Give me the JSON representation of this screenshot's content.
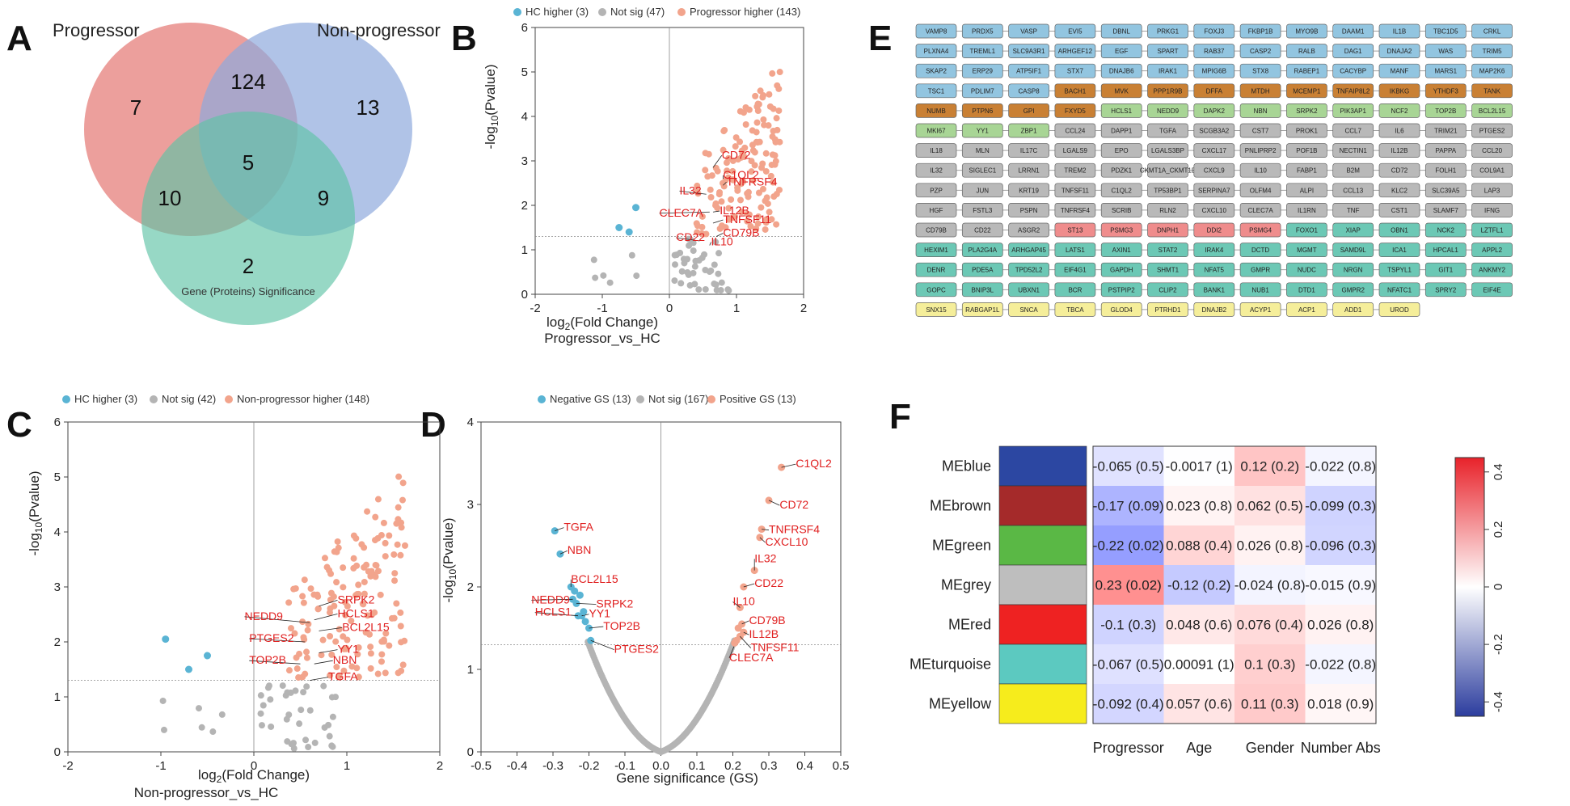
{
  "panel_labels": [
    "A",
    "B",
    "C",
    "D",
    "E",
    "F"
  ],
  "colors": {
    "hc": "#5ab4d4",
    "notsig": "#b4b4b4",
    "up": "#f2a48c",
    "gene_label": "#e02020",
    "venn_progressor": "#e57f7b",
    "venn_nonprogressor": "#8fa9dd",
    "venn_gs": "#5fc3a6"
  },
  "chart_data": [
    {
      "id": "A",
      "type": "venn",
      "sets": [
        "Progressor",
        "Non-progressor",
        "Gene (Proteins) Significance"
      ],
      "regions": {
        "progressor_only": "7",
        "nonprogressor_only": "13",
        "gs_only": "2",
        "progressor_nonprogressor": "124",
        "progressor_gs": "10",
        "nonprogressor_gs": "9",
        "all_three": "5"
      }
    },
    {
      "id": "B",
      "type": "scatter",
      "legend": [
        "HC higher (3)",
        "Not sig (47)",
        "Progressor higher (143)"
      ],
      "xlabel_base": "log",
      "xlabel_sub": "2",
      "xlabel_rest": "(Fold Change)",
      "xlabel2": "Progressor_vs_HC",
      "ylabel_pre": "-log",
      "ylabel_sub": "10",
      "ylabel_post": "(Pvalue)",
      "xlim": [
        -2,
        2
      ],
      "ylim": [
        0,
        6
      ],
      "xticks": [
        "-2",
        "-1",
        "0",
        "1",
        "2"
      ],
      "yticks": [
        "0",
        "1",
        "2",
        "3",
        "4",
        "5",
        "6"
      ],
      "threshold_y": 1.3,
      "seed": 11,
      "series_hc": [
        [
          -0.75,
          1.5
        ],
        [
          -0.6,
          1.4
        ],
        [
          -0.5,
          1.95
        ]
      ],
      "labels": [
        {
          "text": "CD72",
          "x": 0.65,
          "y": 2.85,
          "tx": 0.78,
          "ty": 3.05
        },
        {
          "text": "C1QL2",
          "x": 0.8,
          "y": 2.6,
          "tx": 0.8,
          "ty": 2.6
        },
        {
          "text": "TNFRSF4",
          "x": 0.8,
          "y": 2.45,
          "tx": 0.85,
          "ty": 2.45
        },
        {
          "text": "IL32",
          "x": 0.55,
          "y": 2.25,
          "tx": 0.15,
          "ty": 2.25
        },
        {
          "text": "IL12B",
          "x": 0.65,
          "y": 1.85,
          "tx": 0.75,
          "ty": 1.8
        },
        {
          "text": "CLEC7A",
          "x": 0.6,
          "y": 1.85,
          "tx": -0.15,
          "ty": 1.75
        },
        {
          "text": "TNFSF11",
          "x": 0.65,
          "y": 1.6,
          "tx": 0.8,
          "ty": 1.6
        },
        {
          "text": "CD79B",
          "x": 0.7,
          "y": 1.3,
          "tx": 0.8,
          "ty": 1.3
        },
        {
          "text": "CD22",
          "x": 0.45,
          "y": 1.2,
          "tx": 0.1,
          "ty": 1.2
        },
        {
          "text": "IL10",
          "x": 0.6,
          "y": 1.1,
          "tx": 0.62,
          "ty": 1.1
        }
      ]
    },
    {
      "id": "C",
      "type": "scatter",
      "legend": [
        "HC higher (3)",
        "Not sig (42)",
        "Non-progressor higher (148)"
      ],
      "xlabel_base": "log",
      "xlabel_sub": "2",
      "xlabel_rest": "(Fold Change)",
      "xlabel2": "Non-progressor_vs_HC",
      "ylabel_pre": "-log",
      "ylabel_sub": "10",
      "ylabel_post": "(Pvalue)",
      "xlim": [
        -2,
        2
      ],
      "ylim": [
        0,
        6
      ],
      "xticks": [
        "-2",
        "-1",
        "0",
        "1",
        "2"
      ],
      "yticks": [
        "0",
        "1",
        "2",
        "3",
        "4",
        "5",
        "6"
      ],
      "threshold_y": 1.3,
      "seed": 29,
      "series_hc": [
        [
          -0.95,
          2.05
        ],
        [
          -0.7,
          1.5
        ],
        [
          -0.5,
          1.75
        ]
      ],
      "labels": [
        {
          "text": "NEDD9",
          "x": 0.6,
          "y": 2.35,
          "tx": -0.1,
          "ty": 2.4
        },
        {
          "text": "SRPK2",
          "x": 0.7,
          "y": 2.65,
          "tx": 0.9,
          "ty": 2.7
        },
        {
          "text": "HCLS1",
          "x": 0.65,
          "y": 2.4,
          "tx": 0.9,
          "ty": 2.45
        },
        {
          "text": "BCL2L15",
          "x": 0.7,
          "y": 2.2,
          "tx": 0.95,
          "ty": 2.2
        },
        {
          "text": "PTGES2",
          "x": 0.55,
          "y": 2.0,
          "tx": -0.05,
          "ty": 2.0
        },
        {
          "text": "YY1",
          "x": 0.7,
          "y": 1.8,
          "tx": 0.9,
          "ty": 1.8
        },
        {
          "text": "TOP2B",
          "x": 0.5,
          "y": 1.6,
          "tx": -0.05,
          "ty": 1.6
        },
        {
          "text": "NBN",
          "x": 0.65,
          "y": 1.6,
          "tx": 0.85,
          "ty": 1.6
        },
        {
          "text": "TGFA",
          "x": 0.6,
          "y": 1.3,
          "tx": 0.8,
          "ty": 1.3
        }
      ]
    },
    {
      "id": "D",
      "type": "scatter",
      "legend": [
        "Negative GS (13)",
        "Not sig (167)",
        "Positive GS (13)"
      ],
      "xlabel": "Gene significance (GS)",
      "ylabel_pre": "-log",
      "ylabel_sub": "10",
      "ylabel_post": "(Pvalue)",
      "xlim": [
        -0.5,
        0.5
      ],
      "ylim": [
        0,
        4
      ],
      "xticks": [
        "-0.5",
        "-0.4",
        "-0.3",
        "-0.2",
        "-0.1",
        "0.0",
        "0.1",
        "0.2",
        "0.3",
        "0.4",
        "0.5"
      ],
      "yticks": [
        "0",
        "1",
        "2",
        "3",
        "4"
      ],
      "threshold_y": 1.3,
      "negative": [
        {
          "text": "TGFA",
          "x": -0.295,
          "y": 2.68,
          "tx": -0.27,
          "ty": 2.68
        },
        {
          "text": "NBN",
          "x": -0.28,
          "y": 2.4,
          "tx": -0.26,
          "ty": 2.4
        },
        {
          "text": "BCL2L15",
          "x": -0.25,
          "y": 2.0,
          "tx": -0.25,
          "ty": 2.05
        },
        {
          "text": "NEDD9",
          "x": -0.245,
          "y": 1.85,
          "tx": -0.36,
          "ty": 1.8
        },
        {
          "text": "SRPK2",
          "x": -0.235,
          "y": 1.8,
          "tx": -0.18,
          "ty": 1.75
        },
        {
          "text": "HCLS1",
          "x": -0.23,
          "y": 1.65,
          "tx": -0.35,
          "ty": 1.65
        },
        {
          "text": "YY1",
          "x": -0.22,
          "y": 1.65,
          "tx": -0.2,
          "ty": 1.63
        },
        {
          "text": "TOP2B",
          "x": -0.2,
          "y": 1.5,
          "tx": -0.16,
          "ty": 1.48
        },
        {
          "text": "PTGES2",
          "x": -0.195,
          "y": 1.35,
          "tx": -0.13,
          "ty": 1.2
        },
        {
          "text": "",
          "x": -0.21,
          "y": 1.58
        },
        {
          "text": "",
          "x": -0.215,
          "y": 1.7
        },
        {
          "text": "",
          "x": -0.225,
          "y": 1.9
        },
        {
          "text": "",
          "x": -0.24,
          "y": 1.95
        }
      ],
      "positive": [
        {
          "text": "C1QL2",
          "x": 0.335,
          "y": 3.45,
          "tx": 0.375,
          "ty": 3.45
        },
        {
          "text": "CD72",
          "x": 0.3,
          "y": 3.05,
          "tx": 0.33,
          "ty": 2.95
        },
        {
          "text": "TNFRSF4",
          "x": 0.28,
          "y": 2.7,
          "tx": 0.3,
          "ty": 2.65
        },
        {
          "text": "CXCL10",
          "x": 0.275,
          "y": 2.6,
          "tx": 0.29,
          "ty": 2.5
        },
        {
          "text": "IL32",
          "x": 0.26,
          "y": 2.2,
          "tx": 0.26,
          "ty": 2.3
        },
        {
          "text": "CD22",
          "x": 0.23,
          "y": 2.0,
          "tx": 0.26,
          "ty": 2.0
        },
        {
          "text": "IL10",
          "x": 0.22,
          "y": 1.75,
          "tx": 0.2,
          "ty": 1.78
        },
        {
          "text": "CD79B",
          "x": 0.225,
          "y": 1.55,
          "tx": 0.245,
          "ty": 1.55
        },
        {
          "text": "IL12B",
          "x": 0.23,
          "y": 1.45,
          "tx": 0.245,
          "ty": 1.38
        },
        {
          "text": "TNFSF11",
          "x": 0.22,
          "y": 1.4,
          "tx": 0.25,
          "ty": 1.22
        },
        {
          "text": "CLEC7A",
          "x": 0.21,
          "y": 1.35,
          "tx": 0.19,
          "ty": 1.1
        },
        {
          "text": "",
          "x": 0.205,
          "y": 1.32
        },
        {
          "text": "",
          "x": 0.215,
          "y": 1.5
        }
      ]
    },
    {
      "id": "E",
      "type": "table",
      "module_colors": {
        "B": "#92c5e0",
        "O": "#c98034",
        "G": "#a8d595",
        "R": "#ef8c8c",
        "T": "#6cc8b5",
        "Y": "#f5ee9a",
        "X": "#b9b9b9"
      },
      "rows": [
        {
          "c": "BBBBBBBBBBBBBB",
          "g": [
            "VAMP8",
            "PRDX5",
            "VASP",
            "EVI5",
            "DBNL",
            "PRKG1",
            "FOXJ3",
            "FKBP1B",
            "MYO9B",
            "DAAM1",
            "IL1B",
            "TBC1D5",
            "CRKL"
          ]
        },
        {
          "c": "BBBBBBBBBBBBBB",
          "g": [
            "PLXNA4",
            "TREML1",
            "SLC9A3R1",
            "ARHGEF12",
            "EGF",
            "SPART",
            "RAB37",
            "CASP2",
            "RALB",
            "DAG1",
            "DNAJA2",
            "WAS",
            "TRIM5"
          ]
        },
        {
          "c": "BBBBBBBBBBBBBB",
          "g": [
            "SKAP2",
            "ERP29",
            "ATP5IF1",
            "STX7",
            "DNAJB6",
            "IRAK1",
            "MPIG6B",
            "STX8",
            "RABEP1",
            "CACYBP",
            "MANF",
            "MARS1",
            "MAP2K6"
          ]
        },
        {
          "c": "BBBOOOOOOOOOOO",
          "g": [
            "TSC1",
            "PDLIM7",
            "CASP8",
            "BACH1",
            "MVK",
            "PPP1R9B",
            "DFFA",
            "MTDH",
            "MCEMP1",
            "TNFAIP8L2",
            "IKBKG",
            "YTHDF3",
            "TANK"
          ]
        },
        {
          "c": "OOOOGGGGGGGGGG",
          "g": [
            "NUMB",
            "PTPN6",
            "GPI",
            "FXYD5",
            "HCLS1",
            "NEDD9",
            "DAPK2",
            "NBN",
            "SRPK2",
            "PIK3AP1",
            "NCF2",
            "TOP2B",
            "BCL2L15"
          ]
        },
        {
          "c": "GGGXXXXXXXXXXX",
          "g": [
            "MKI67",
            "YY1",
            "ZBP1",
            "CCL24",
            "DAPP1",
            "TGFA",
            "SCGB3A2",
            "CST7",
            "PROK1",
            "CCL7",
            "IL6",
            "TRIM21",
            "PTGES2"
          ]
        },
        {
          "c": "XXXXXXXXXXXXXX",
          "g": [
            "IL18",
            "MLN",
            "IL17C",
            "LGALS9",
            "EPO",
            "LGALS3BP",
            "CXCL17",
            "PNLIPRP2",
            "POF1B",
            "NECTIN1",
            "IL12B",
            "PAPPA",
            "CCL20"
          ]
        },
        {
          "c": "XXXXXXXXXXXXXX",
          "g": [
            "IL32",
            "SIGLEC1",
            "LRRN1",
            "TREM2",
            "PDZK1",
            "CKMT1A_CKMT1B",
            "CXCL9",
            "IL10",
            "FABP1",
            "B2M",
            "CD72",
            "FOLH1",
            "COL9A1"
          ]
        },
        {
          "c": "XXXXXXXXXXXXXX",
          "g": [
            "PZP",
            "JUN",
            "KRT19",
            "TNFSF11",
            "C1QL2",
            "TP53BP1",
            "SERPINA7",
            "OLFM4",
            "ALPI",
            "CCL13",
            "KLC2",
            "SLC39A5",
            "LAP3"
          ]
        },
        {
          "c": "XXXXXXXXXXXXXX",
          "g": [
            "HGF",
            "FSTL3",
            "PSPN",
            "TNFRSF4",
            "SCRIB",
            "RLN2",
            "CXCL10",
            "CLEC7A",
            "IL1RN",
            "TNF",
            "CST1",
            "SLAMF7",
            "IFNG"
          ]
        },
        {
          "c": "XXXRRRRRTTTTTT",
          "g": [
            "CD79B",
            "CD22",
            "ASGR2",
            "ST13",
            "PSMG3",
            "DNPH1",
            "DDI2",
            "PSMG4",
            "FOXO1",
            "XIAP",
            "OBN1",
            "NCK2",
            "LZTFL1"
          ]
        },
        {
          "c": "TTTTTTTTTTTTTT",
          "g": [
            "HEXIM1",
            "PLA2G4A",
            "ARHGAP45",
            "LATS1",
            "AXIN1",
            "STAT2",
            "IRAK4",
            "DCTD",
            "MGMT",
            "SAMD9L",
            "ICA1",
            "HPCAL1",
            "APPL2"
          ]
        },
        {
          "c": "TTTTTTTTTTTTTT",
          "g": [
            "DENR",
            "PDE5A",
            "TPD52L2",
            "EIF4G1",
            "GAPDH",
            "SHMT1",
            "NFAT5",
            "GMPR",
            "NUDC",
            "NRGN",
            "TSPYL1",
            "GIT1",
            "ANKMY2"
          ]
        },
        {
          "c": "TTTTTTTTTTTTTY",
          "g": [
            "GOPC",
            "BNIP3L",
            "UBXN1",
            "BCR",
            "PSTPIP2",
            "CLIP2",
            "BANK1",
            "NUB1",
            "DTD1",
            "GMPR2",
            "NFATC1",
            "SPRY2",
            "EIF4E"
          ]
        },
        {
          "c": "YYYYYYYYYYYYYY",
          "g": [
            "SNX15",
            "RABGAP1L",
            "SNCA",
            "TBCA",
            "GLOD4",
            "PTRHD1",
            "DNAJB2",
            "ACYP1",
            "ACP1",
            "ADD1",
            "UROD"
          ]
        }
      ]
    },
    {
      "id": "F",
      "type": "heatmap",
      "rows": [
        "MEblue",
        "MEbrown",
        "MEgreen",
        "MEgrey",
        "MEred",
        "MEturquoise",
        "MEyellow"
      ],
      "row_colors": [
        "#2c47a2",
        "#a52a2a",
        "#5ab845",
        "#bebebe",
        "#ee2222",
        "#5cc9c0",
        "#f6ec1c"
      ],
      "columns": [
        "Progressor",
        "Age",
        "Gender",
        "Number Abs"
      ],
      "values": [
        [
          -0.065,
          -0.0017,
          0.12,
          -0.022
        ],
        [
          -0.17,
          0.023,
          0.062,
          -0.099
        ],
        [
          -0.22,
          0.088,
          0.026,
          -0.096
        ],
        [
          0.23,
          -0.12,
          -0.024,
          -0.015
        ],
        [
          -0.1,
          0.048,
          0.076,
          0.026
        ],
        [
          -0.067,
          0.00091,
          0.1,
          -0.022
        ],
        [
          -0.092,
          0.057,
          0.11,
          0.018
        ]
      ],
      "cell_text": [
        [
          "-0.065 (0.5)",
          "-0.0017 (1)",
          "0.12 (0.2)",
          "-0.022 (0.8)"
        ],
        [
          "-0.17 (0.09)",
          "0.023 (0.8)",
          "0.062 (0.5)",
          "-0.099 (0.3)"
        ],
        [
          "-0.22 (0.02)",
          "0.088 (0.4)",
          "0.026 (0.8)",
          "-0.096 (0.3)"
        ],
        [
          "0.23 (0.02)",
          "-0.12 (0.2)",
          "-0.024 (0.8)",
          "-0.015 (0.9)"
        ],
        [
          "-0.1 (0.3)",
          "0.048 (0.6)",
          "0.076 (0.4)",
          "0.026 (0.8)"
        ],
        [
          "-0.067 (0.5)",
          "0.00091 (1)",
          "0.1 (0.3)",
          "-0.022 (0.8)"
        ],
        [
          "-0.092 (0.4)",
          "0.057 (0.6)",
          "0.11 (0.3)",
          "0.018 (0.9)"
        ]
      ],
      "colorbar_ticks": [
        "0.4",
        "0.2",
        "0",
        "-0.2",
        "-0.4"
      ],
      "colorbar_values": [
        0.4,
        0.2,
        0,
        -0.2,
        -0.4
      ]
    }
  ]
}
